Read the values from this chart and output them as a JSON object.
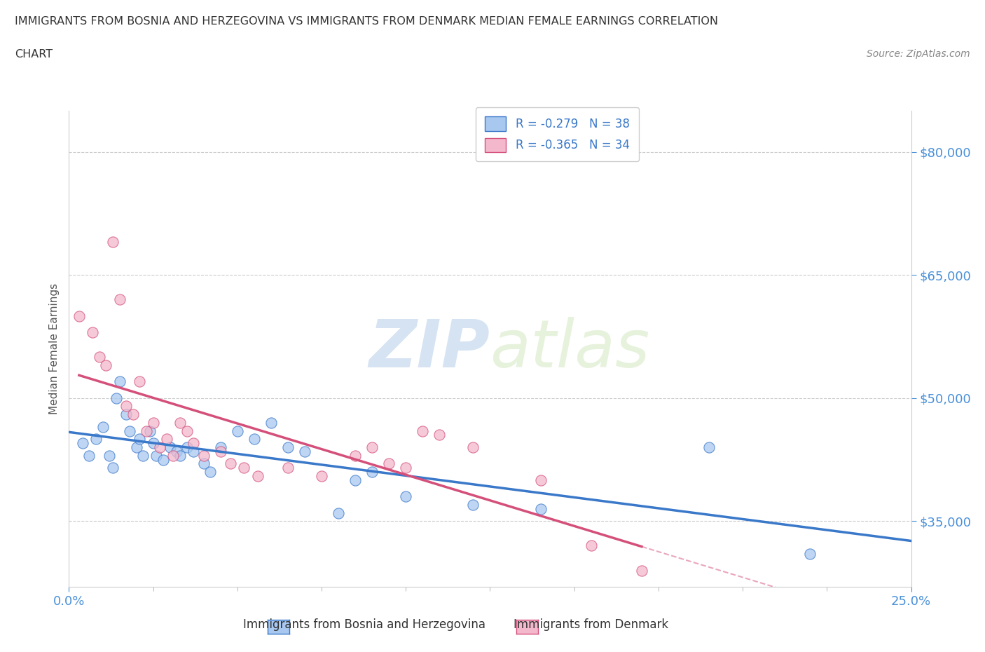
{
  "title_line1": "IMMIGRANTS FROM BOSNIA AND HERZEGOVINA VS IMMIGRANTS FROM DENMARK MEDIAN FEMALE EARNINGS CORRELATION",
  "title_line2": "CHART",
  "source": "Source: ZipAtlas.com",
  "ylabel": "Median Female Earnings",
  "xlim": [
    0.0,
    0.25
  ],
  "ylim": [
    27000,
    85000
  ],
  "yticks": [
    35000,
    50000,
    65000,
    80000
  ],
  "ytick_labels": [
    "$35,000",
    "$50,000",
    "$65,000",
    "$80,000"
  ],
  "xtick_labels": [
    "0.0%",
    "25.0%"
  ],
  "legend_r1": "R = -0.279   N = 38",
  "legend_r2": "R = -0.365   N = 34",
  "color_bosnia": "#a8c8f0",
  "color_denmark": "#f4b8cc",
  "trendline_bosnia_color": "#3a78c9",
  "trendline_denmark_color": "#d4507a",
  "bosnia_scatter_x": [
    0.004,
    0.006,
    0.008,
    0.01,
    0.012,
    0.013,
    0.014,
    0.015,
    0.017,
    0.018,
    0.02,
    0.021,
    0.022,
    0.024,
    0.025,
    0.026,
    0.028,
    0.03,
    0.032,
    0.033,
    0.035,
    0.037,
    0.04,
    0.042,
    0.045,
    0.05,
    0.055,
    0.06,
    0.065,
    0.07,
    0.08,
    0.085,
    0.09,
    0.1,
    0.12,
    0.14,
    0.19,
    0.22
  ],
  "bosnia_scatter_y": [
    44500,
    43000,
    45000,
    46500,
    43000,
    41500,
    50000,
    52000,
    48000,
    46000,
    44000,
    45000,
    43000,
    46000,
    44500,
    43000,
    42500,
    44000,
    43500,
    43000,
    44000,
    43500,
    42000,
    41000,
    44000,
    46000,
    45000,
    47000,
    44000,
    43500,
    36000,
    40000,
    41000,
    38000,
    37000,
    36500,
    44000,
    31000
  ],
  "denmark_scatter_x": [
    0.003,
    0.007,
    0.009,
    0.011,
    0.013,
    0.015,
    0.017,
    0.019,
    0.021,
    0.023,
    0.025,
    0.027,
    0.029,
    0.031,
    0.033,
    0.035,
    0.037,
    0.04,
    0.045,
    0.048,
    0.052,
    0.056,
    0.065,
    0.075,
    0.085,
    0.09,
    0.095,
    0.1,
    0.105,
    0.11,
    0.12,
    0.14,
    0.155,
    0.17
  ],
  "denmark_scatter_y": [
    60000,
    58000,
    55000,
    54000,
    69000,
    62000,
    49000,
    48000,
    52000,
    46000,
    47000,
    44000,
    45000,
    43000,
    47000,
    46000,
    44500,
    43000,
    43500,
    42000,
    41500,
    40500,
    41500,
    40500,
    43000,
    44000,
    42000,
    41500,
    46000,
    45500,
    44000,
    40000,
    32000,
    29000
  ],
  "grid_color": "#cccccc",
  "bg_color": "#ffffff",
  "title_color": "#333333",
  "axis_label_color": "#555555",
  "tick_color": "#4a90d9",
  "bottom_legend_label1": "Immigrants from Bosnia and Herzegovina",
  "bottom_legend_label2": "Immigrants from Denmark"
}
